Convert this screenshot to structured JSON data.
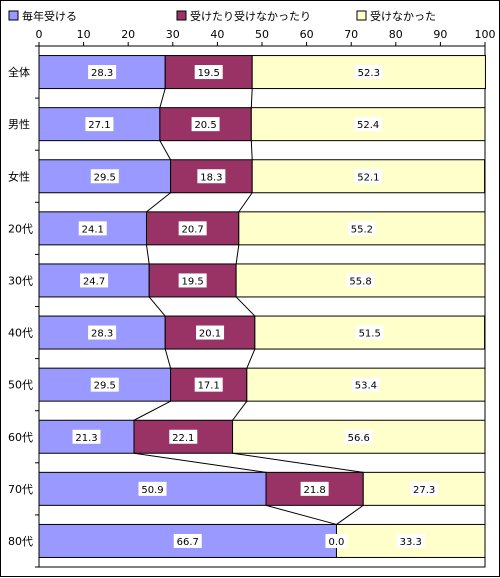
{
  "chart_data": {
    "type": "bar",
    "orientation": "horizontal",
    "stacked": true,
    "categories": [
      "全体",
      "男性",
      "女性",
      "20代",
      "30代",
      "40代",
      "50代",
      "60代",
      "70代",
      "80代"
    ],
    "series": [
      {
        "name": "毎年受ける",
        "color": "#9999ff",
        "values": [
          28.3,
          27.1,
          29.5,
          24.1,
          24.7,
          28.3,
          29.5,
          21.3,
          50.9,
          66.7
        ]
      },
      {
        "name": "受けたり受けなかったり",
        "color": "#993366",
        "values": [
          19.5,
          20.5,
          18.3,
          20.7,
          19.5,
          20.1,
          17.1,
          22.1,
          21.8,
          0.0
        ]
      },
      {
        "name": "受けなかった",
        "color": "#ffffcc",
        "values": [
          52.3,
          52.4,
          52.1,
          55.2,
          55.8,
          51.5,
          53.4,
          56.6,
          27.3,
          33.3
        ]
      }
    ],
    "data_labels": [
      [
        "28.3",
        "27.1",
        "29.5",
        "24.1",
        "24.7",
        "28.3",
        "29.5",
        "21.3",
        "50.9",
        "66.7"
      ],
      [
        "19.5",
        "20.5",
        "18.3",
        "20.7",
        "19.5",
        "20.1",
        "17.1",
        "22.1",
        "21.8",
        "0.0"
      ],
      [
        "52.3",
        "52.4",
        "52.1",
        "55.2",
        "55.8",
        "51.5",
        "53.4",
        "56.6",
        "27.3",
        "33.3"
      ]
    ],
    "xticks": [
      "0",
      "10",
      "20",
      "30",
      "40",
      "50",
      "60",
      "70",
      "80",
      "90",
      "100"
    ],
    "xlim": [
      0,
      100
    ],
    "title": "",
    "xlabel": "",
    "ylabel": "",
    "series_lines": true,
    "grid": false,
    "legend_position": "top"
  }
}
